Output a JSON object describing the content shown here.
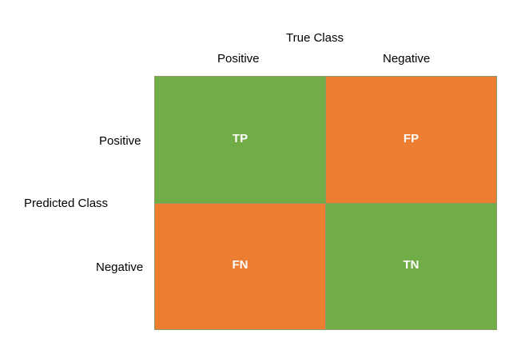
{
  "header": {
    "true_class": "True Class",
    "positive": "Positive",
    "negative": "Negative"
  },
  "rows": {
    "predicted_class": "Predicted Class",
    "positive": "Positive",
    "negative": "Negative"
  },
  "cells": {
    "tp": {
      "label": "TP",
      "color": "#70ad47"
    },
    "fp": {
      "label": "FP",
      "color": "#ed7d31"
    },
    "fn": {
      "label": "FN",
      "color": "#ed7d31"
    },
    "tn": {
      "label": "TN",
      "color": "#70ad47"
    }
  }
}
